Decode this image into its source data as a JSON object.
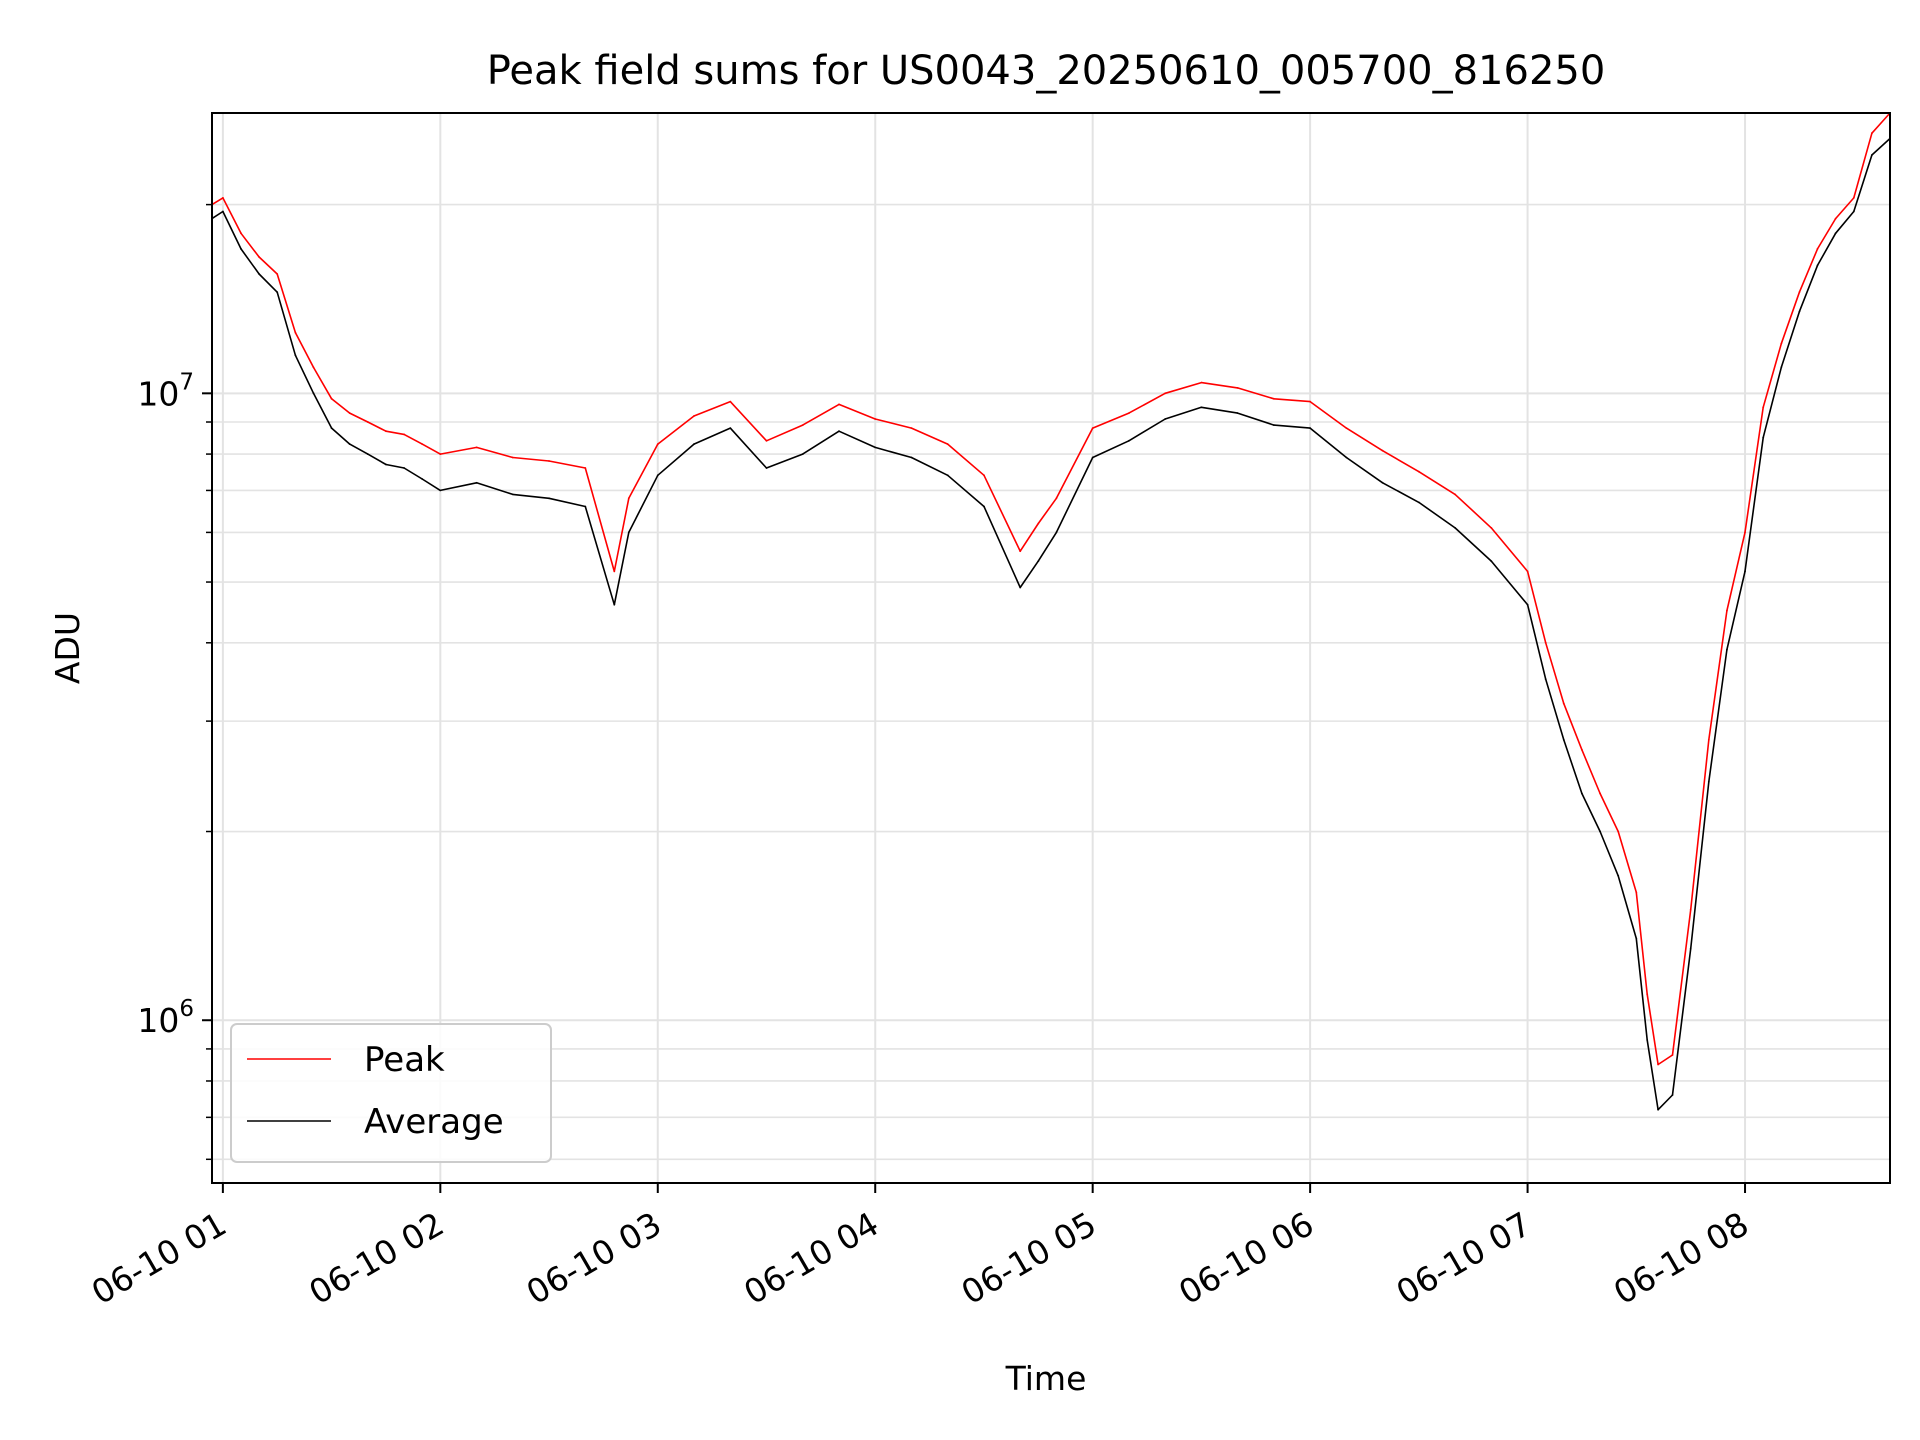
{
  "chart_data": {
    "type": "line",
    "title": "Peak field sums for US0043_20250610_005700_816250",
    "xlabel": "Time",
    "ylabel": "ADU",
    "yscale": "log",
    "xlim": [
      "2025-06-10 00:57",
      "2025-06-10 08:40"
    ],
    "ylim": [
      550000,
      28000000
    ],
    "grid": true,
    "legend": "lower-left",
    "x_ticks": [
      "06-10 01",
      "06-10 02",
      "06-10 03",
      "06-10 04",
      "06-10 05",
      "06-10 06",
      "06-10 07",
      "06-10 08"
    ],
    "x": [
      "2025-06-10 00:57",
      "2025-06-10 01:00",
      "2025-06-10 01:05",
      "2025-06-10 01:10",
      "2025-06-10 01:15",
      "2025-06-10 01:20",
      "2025-06-10 01:25",
      "2025-06-10 01:30",
      "2025-06-10 01:35",
      "2025-06-10 01:40",
      "2025-06-10 01:45",
      "2025-06-10 01:50",
      "2025-06-10 01:55",
      "2025-06-10 02:00",
      "2025-06-10 02:10",
      "2025-06-10 02:20",
      "2025-06-10 02:30",
      "2025-06-10 02:40",
      "2025-06-10 02:48",
      "2025-06-10 02:52",
      "2025-06-10 03:00",
      "2025-06-10 03:10",
      "2025-06-10 03:20",
      "2025-06-10 03:30",
      "2025-06-10 03:40",
      "2025-06-10 03:50",
      "2025-06-10 04:00",
      "2025-06-10 04:10",
      "2025-06-10 04:20",
      "2025-06-10 04:30",
      "2025-06-10 04:40",
      "2025-06-10 04:45",
      "2025-06-10 04:50",
      "2025-06-10 05:00",
      "2025-06-10 05:10",
      "2025-06-10 05:20",
      "2025-06-10 05:30",
      "2025-06-10 05:40",
      "2025-06-10 05:50",
      "2025-06-10 06:00",
      "2025-06-10 06:10",
      "2025-06-10 06:20",
      "2025-06-10 06:30",
      "2025-06-10 06:40",
      "2025-06-10 06:50",
      "2025-06-10 07:00",
      "2025-06-10 07:05",
      "2025-06-10 07:10",
      "2025-06-10 07:15",
      "2025-06-10 07:20",
      "2025-06-10 07:25",
      "2025-06-10 07:30",
      "2025-06-10 07:33",
      "2025-06-10 07:36",
      "2025-06-10 07:40",
      "2025-06-10 07:45",
      "2025-06-10 07:50",
      "2025-06-10 07:55",
      "2025-06-10 08:00",
      "2025-06-10 08:05",
      "2025-06-10 08:10",
      "2025-06-10 08:15",
      "2025-06-10 08:20",
      "2025-06-10 08:25",
      "2025-06-10 08:30",
      "2025-06-10 08:35",
      "2025-06-10 08:40"
    ],
    "series": [
      {
        "name": "Peak",
        "color": "#ff0000",
        "values": [
          20000000,
          20500000,
          18000000,
          16500000,
          15500000,
          12500000,
          11000000,
          9800000,
          9300000,
          9000000,
          8700000,
          8600000,
          8300000,
          8000000,
          8200000,
          7900000,
          7800000,
          7600000,
          5200000,
          6800000,
          8300000,
          9200000,
          9700000,
          8400000,
          8900000,
          9600000,
          9100000,
          8800000,
          8300000,
          7400000,
          5600000,
          6200000,
          6800000,
          8800000,
          9300000,
          10000000,
          10400000,
          10200000,
          9800000,
          9700000,
          8800000,
          8100000,
          7500000,
          6900000,
          6100000,
          5200000,
          4000000,
          3200000,
          2700000,
          2300000,
          2000000,
          1600000,
          1100000,
          850000,
          880000,
          1500000,
          2800000,
          4500000,
          6000000,
          9500000,
          12000000,
          14500000,
          17000000,
          19000000,
          20500000,
          26000000,
          28000000
        ]
      },
      {
        "name": "Average",
        "color": "#000000",
        "values": [
          19000000,
          19500000,
          17000000,
          15500000,
          14500000,
          11500000,
          10000000,
          8800000,
          8300000,
          8000000,
          7700000,
          7600000,
          7300000,
          7000000,
          7200000,
          6900000,
          6800000,
          6600000,
          4600000,
          6000000,
          7400000,
          8300000,
          8800000,
          7600000,
          8000000,
          8700000,
          8200000,
          7900000,
          7400000,
          6600000,
          4900000,
          5400000,
          6000000,
          7900000,
          8400000,
          9100000,
          9500000,
          9300000,
          8900000,
          8800000,
          7900000,
          7200000,
          6700000,
          6100000,
          5400000,
          4600000,
          3500000,
          2800000,
          2300000,
          2000000,
          1700000,
          1350000,
          930000,
          720000,
          760000,
          1300000,
          2400000,
          3900000,
          5200000,
          8500000,
          11000000,
          13500000,
          16000000,
          18000000,
          19500000,
          24000000,
          25500000
        ]
      }
    ]
  }
}
